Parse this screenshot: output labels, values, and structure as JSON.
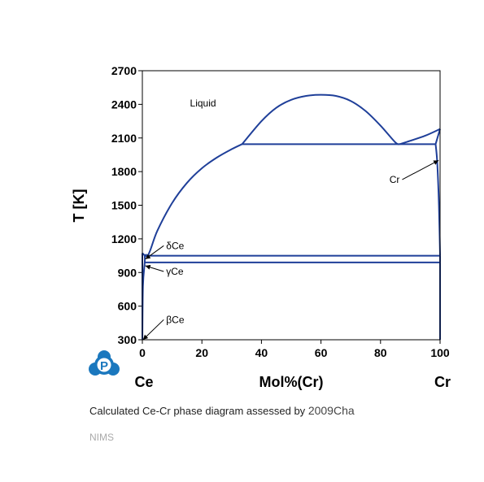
{
  "caption": {
    "text": "Calculated Ce-Cr phase diagram assessed by",
    "reference": "2009Cha"
  },
  "credit": "NIMS",
  "logo": {
    "icon": "pauling-file-logo-icon",
    "letter": "P",
    "color": "#1b78be"
  },
  "colors": {
    "line": "#1f3f99",
    "axis": "#000000"
  },
  "chart_data": {
    "type": "phase-diagram",
    "title": "",
    "xlabel": "Mol%(Cr)",
    "ylabel": "T [K]",
    "xlim": [
      0,
      100
    ],
    "ylim": [
      300,
      2700
    ],
    "xticks": [
      0,
      20,
      40,
      60,
      80,
      100
    ],
    "yticks": [
      300,
      600,
      900,
      1200,
      1500,
      1800,
      2100,
      2400,
      2700
    ],
    "x_endpoint_labels": {
      "left": "Ce",
      "right": "Cr"
    },
    "grid": false,
    "phase_labels": [
      {
        "text": "Liquid",
        "x": 16,
        "y": 2380
      },
      {
        "text": "δCe",
        "x": 8,
        "y": 1110,
        "arrow_to": [
          1,
          1020
        ]
      },
      {
        "text": "γCe",
        "x": 8,
        "y": 880,
        "arrow_to": [
          1,
          960
        ]
      },
      {
        "text": "βCe",
        "x": 8,
        "y": 450,
        "arrow_to": [
          0.2,
          300
        ]
      },
      {
        "text": "Cr",
        "x": 83,
        "y": 1700,
        "arrow_to": [
          99.5,
          1900
        ]
      }
    ],
    "lines": [
      {
        "name": "liquidus-ce-side",
        "points": [
          [
            0,
            1071
          ],
          [
            2,
            1060
          ],
          [
            5,
            1270
          ],
          [
            10,
            1520
          ],
          [
            15,
            1700
          ],
          [
            20,
            1830
          ],
          [
            25,
            1925
          ],
          [
            30,
            2000
          ],
          [
            33.5,
            2045
          ]
        ]
      },
      {
        "name": "miscibility-gap",
        "points": [
          [
            33.5,
            2045
          ],
          [
            40,
            2250
          ],
          [
            45,
            2370
          ],
          [
            50,
            2440
          ],
          [
            55,
            2475
          ],
          [
            60,
            2485
          ],
          [
            65,
            2475
          ],
          [
            70,
            2430
          ],
          [
            75,
            2340
          ],
          [
            80,
            2210
          ],
          [
            85,
            2060
          ],
          [
            86.5,
            2045
          ]
        ]
      },
      {
        "name": "liquidus-cr-side",
        "points": [
          [
            86.5,
            2045
          ],
          [
            90,
            2075
          ],
          [
            95,
            2120
          ],
          [
            100,
            2180
          ]
        ]
      },
      {
        "name": "monotectic",
        "points": [
          [
            33.5,
            2045
          ],
          [
            98.5,
            2045
          ]
        ]
      },
      {
        "name": "cr-solvus-upper",
        "points": [
          [
            98.5,
            2045
          ],
          [
            100,
            2180
          ]
        ]
      },
      {
        "name": "cr-solvus",
        "points": [
          [
            98.5,
            2045
          ],
          [
            99,
            1900
          ],
          [
            99.5,
            1600
          ],
          [
            99.8,
            1300
          ],
          [
            100,
            1050
          ]
        ]
      },
      {
        "name": "eutectic-1050",
        "points": [
          [
            0.8,
            1050
          ],
          [
            100,
            1050
          ]
        ]
      },
      {
        "name": "peritectoid-990",
        "points": [
          [
            0.8,
            990
          ],
          [
            100,
            990
          ]
        ]
      },
      {
        "name": "delta-ce-left",
        "points": [
          [
            0,
            1071
          ],
          [
            0,
            1000
          ]
        ]
      },
      {
        "name": "delta-ce-right",
        "points": [
          [
            1.5,
            1062
          ],
          [
            0.8,
            1050
          ]
        ]
      },
      {
        "name": "gamma-ce-boundary",
        "points": [
          [
            0.8,
            1050
          ],
          [
            0.8,
            990
          ],
          [
            0.2,
            780
          ],
          [
            0,
            300
          ]
        ]
      },
      {
        "name": "ce-edge",
        "points": [
          [
            0,
            300
          ],
          [
            0,
            1071
          ]
        ]
      },
      {
        "name": "cr-edge",
        "points": [
          [
            100,
            300
          ],
          [
            100,
            1050
          ]
        ]
      }
    ]
  }
}
